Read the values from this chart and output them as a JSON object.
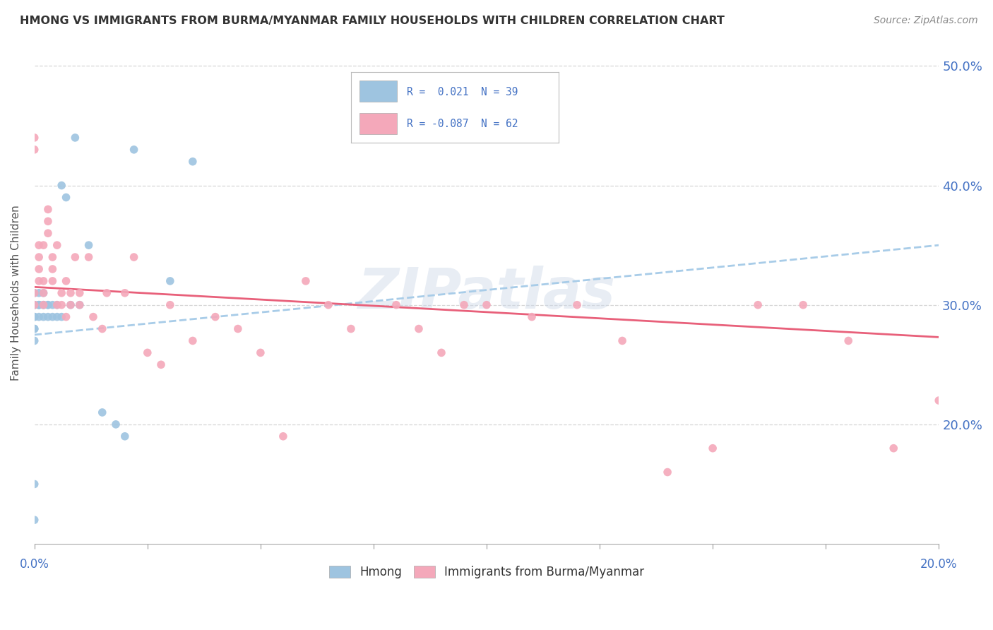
{
  "title": "HMONG VS IMMIGRANTS FROM BURMA/MYANMAR FAMILY HOUSEHOLDS WITH CHILDREN CORRELATION CHART",
  "source": "Source: ZipAtlas.com",
  "ylabel": "Family Households with Children",
  "legend_r1": "R =  0.021  N = 39",
  "legend_r2": "R = -0.087  N = 62",
  "legend_label1": "Hmong",
  "legend_label2": "Immigrants from Burma/Myanmar",
  "watermark": "ZIPatlas",
  "hmong_color": "#9ec4e0",
  "burma_color": "#f4a8ba",
  "hmong_trend_color": "#a8cce8",
  "burma_trend_color": "#e8607a",
  "background_color": "#ffffff",
  "grid_color": "#cccccc",
  "title_color": "#333333",
  "axis_color": "#4472c4",
  "xmin": 0.0,
  "xmax": 0.2,
  "ymin": 0.1,
  "ymax": 0.52,
  "ytick_vals": [
    0.2,
    0.3,
    0.4,
    0.5
  ],
  "ytick_labels": [
    "20.0%",
    "30.0%",
    "40.0%",
    "50.0%"
  ],
  "hmong_x": [
    0.0,
    0.0,
    0.0,
    0.0,
    0.0,
    0.0,
    0.0,
    0.0,
    0.0,
    0.0,
    0.001,
    0.001,
    0.001,
    0.001,
    0.001,
    0.002,
    0.002,
    0.002,
    0.002,
    0.003,
    0.003,
    0.003,
    0.004,
    0.004,
    0.005,
    0.005,
    0.006,
    0.006,
    0.007,
    0.008,
    0.009,
    0.01,
    0.012,
    0.015,
    0.018,
    0.02,
    0.022,
    0.03,
    0.035
  ],
  "hmong_y": [
    0.3,
    0.29,
    0.29,
    0.28,
    0.28,
    0.27,
    0.3,
    0.31,
    0.15,
    0.12,
    0.3,
    0.31,
    0.3,
    0.29,
    0.3,
    0.29,
    0.3,
    0.3,
    0.31,
    0.3,
    0.3,
    0.29,
    0.3,
    0.29,
    0.3,
    0.29,
    0.29,
    0.4,
    0.39,
    0.3,
    0.44,
    0.3,
    0.35,
    0.21,
    0.2,
    0.19,
    0.43,
    0.32,
    0.42
  ],
  "burma_x": [
    0.0,
    0.0,
    0.0,
    0.0,
    0.001,
    0.001,
    0.001,
    0.001,
    0.002,
    0.002,
    0.002,
    0.002,
    0.003,
    0.003,
    0.003,
    0.004,
    0.004,
    0.004,
    0.005,
    0.005,
    0.006,
    0.006,
    0.007,
    0.007,
    0.008,
    0.008,
    0.009,
    0.01,
    0.01,
    0.012,
    0.013,
    0.015,
    0.016,
    0.02,
    0.022,
    0.025,
    0.028,
    0.03,
    0.035,
    0.04,
    0.045,
    0.05,
    0.055,
    0.06,
    0.065,
    0.07,
    0.075,
    0.08,
    0.085,
    0.09,
    0.095,
    0.1,
    0.11,
    0.12,
    0.13,
    0.14,
    0.15,
    0.16,
    0.17,
    0.18,
    0.19,
    0.2
  ],
  "burma_y": [
    0.31,
    0.3,
    0.44,
    0.43,
    0.34,
    0.33,
    0.35,
    0.32,
    0.3,
    0.31,
    0.32,
    0.35,
    0.38,
    0.37,
    0.36,
    0.33,
    0.32,
    0.34,
    0.35,
    0.3,
    0.31,
    0.3,
    0.32,
    0.29,
    0.3,
    0.31,
    0.34,
    0.3,
    0.31,
    0.34,
    0.29,
    0.28,
    0.31,
    0.31,
    0.34,
    0.26,
    0.25,
    0.3,
    0.27,
    0.29,
    0.28,
    0.26,
    0.19,
    0.32,
    0.3,
    0.28,
    0.44,
    0.3,
    0.28,
    0.26,
    0.3,
    0.3,
    0.29,
    0.3,
    0.27,
    0.16,
    0.18,
    0.3,
    0.3,
    0.27,
    0.18,
    0.22
  ]
}
